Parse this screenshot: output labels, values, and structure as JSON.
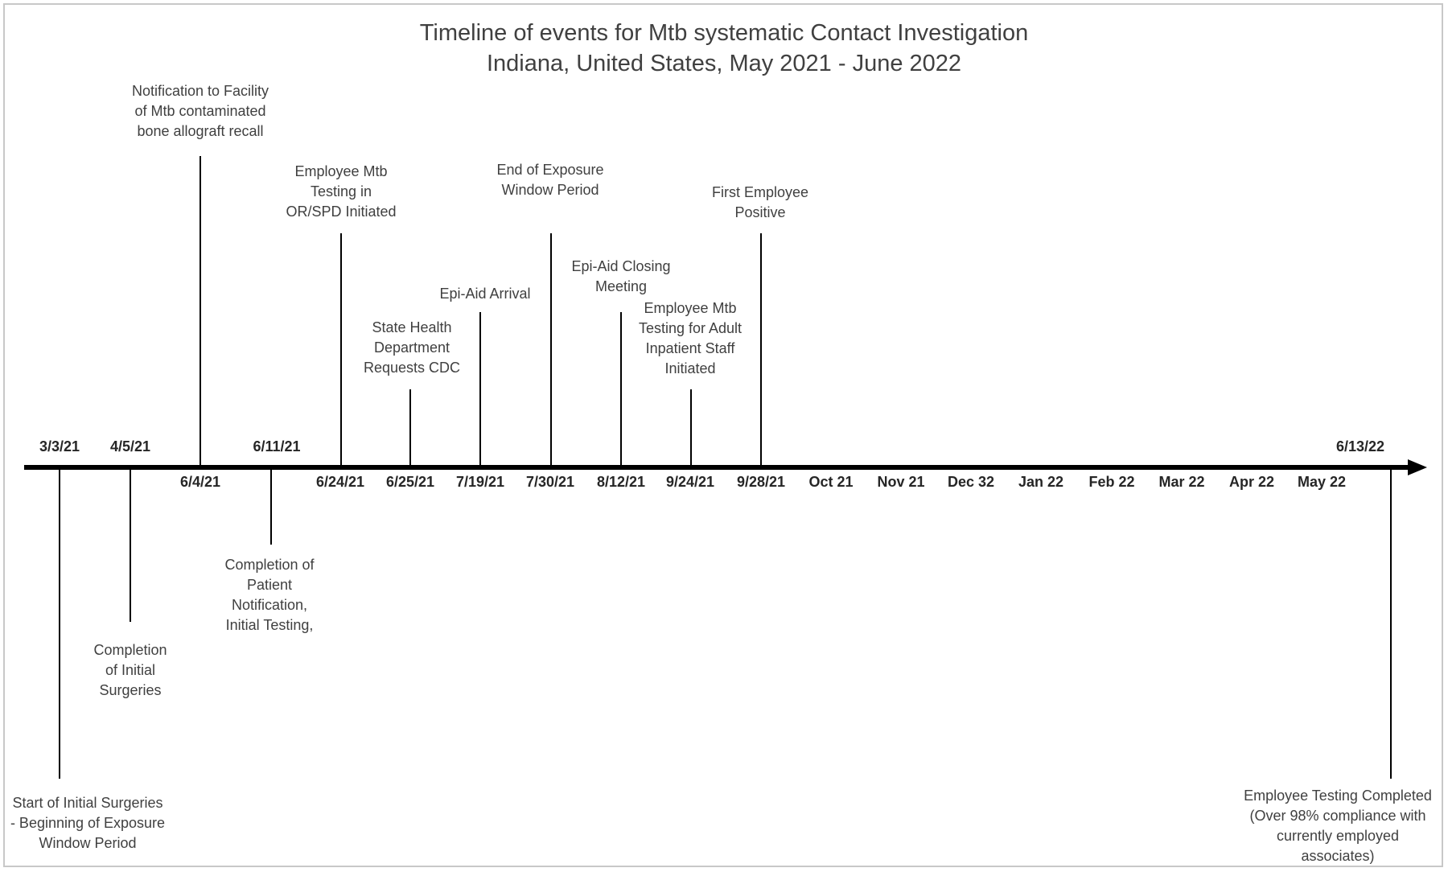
{
  "title": {
    "line1": "Timeline of events for Mtb systematic Contact Investigation",
    "line2": "Indiana, United States, May 2021 - June 2022"
  },
  "date_labels": [
    {
      "key": "d-3-3-21",
      "text": "3/3/21"
    },
    {
      "key": "d-4-5-21",
      "text": "4/5/21"
    },
    {
      "key": "d-6-4-21",
      "text": "6/4/21"
    },
    {
      "key": "d-6-11-21",
      "text": "6/11/21"
    },
    {
      "key": "d-6-24-21",
      "text": "6/24/21"
    },
    {
      "key": "d-6-25-21",
      "text": "6/25/21"
    },
    {
      "key": "d-7-19-21",
      "text": "7/19/21"
    },
    {
      "key": "d-7-30-21",
      "text": "7/30/21"
    },
    {
      "key": "d-8-12-21",
      "text": "8/12/21"
    },
    {
      "key": "d-9-24-21",
      "text": "9/24/21"
    },
    {
      "key": "d-9-28-21",
      "text": "9/28/21"
    },
    {
      "key": "m-oct-21",
      "text": "Oct 21"
    },
    {
      "key": "m-nov-21",
      "text": "Nov 21"
    },
    {
      "key": "m-dec-32",
      "text": "Dec 32"
    },
    {
      "key": "m-jan-22",
      "text": "Jan 22"
    },
    {
      "key": "m-feb-22",
      "text": "Feb 22"
    },
    {
      "key": "m-mar-22",
      "text": "Mar 22"
    },
    {
      "key": "m-apr-22",
      "text": "Apr 22"
    },
    {
      "key": "m-may-22",
      "text": "May 22"
    },
    {
      "key": "d-6-13-22",
      "text": "6/13/22"
    }
  ],
  "events": [
    {
      "key": "start-initial-surgeries",
      "lines": [
        "Start of Initial Surgeries",
        "- Beginning of Exposure",
        "Window Period"
      ]
    },
    {
      "key": "completion-initial-surgeries",
      "lines": [
        "Completion",
        "of Initial",
        "Surgeries"
      ]
    },
    {
      "key": "notification-recall",
      "lines": [
        "Notification to Facility",
        "of Mtb contaminated",
        "bone allograft recall"
      ]
    },
    {
      "key": "completion-patient-notification",
      "lines": [
        "Completion of",
        "Patient",
        "Notification,",
        "Initial Testing,"
      ]
    },
    {
      "key": "employee-testing-or-spd",
      "lines": [
        "Employee Mtb",
        "Testing in",
        "OR/SPD Initiated"
      ]
    },
    {
      "key": "state-health-requests-cdc",
      "lines": [
        "State Health",
        "Department",
        "Requests CDC"
      ]
    },
    {
      "key": "epi-aid-arrival",
      "lines": [
        "Epi-Aid Arrival"
      ]
    },
    {
      "key": "end-exposure-window",
      "lines": [
        "End of Exposure",
        "Window Period"
      ]
    },
    {
      "key": "epi-aid-closing",
      "lines": [
        "Epi-Aid Closing",
        "Meeting"
      ]
    },
    {
      "key": "employee-testing-adult-inpatient",
      "lines": [
        "Employee Mtb",
        "Testing for Adult",
        "Inpatient Staff",
        "Initiated"
      ]
    },
    {
      "key": "first-employee-positive",
      "lines": [
        "First Employee",
        "Positive"
      ]
    },
    {
      "key": "employee-testing-completed",
      "lines": [
        "Employee Testing Completed",
        "(Over 98% compliance with",
        "currently employed",
        "associates)"
      ]
    }
  ]
}
